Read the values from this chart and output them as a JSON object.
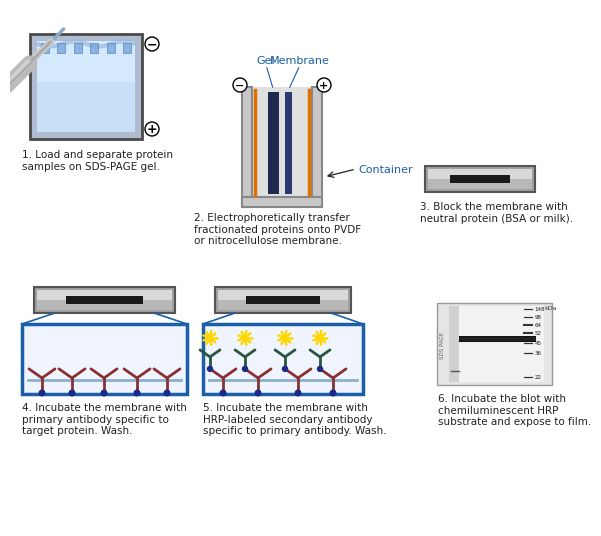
{
  "background_color": "#ffffff",
  "label_color": "#1a5fa8",
  "text_color": "#222222",
  "blue_border": "#1a5fa8",
  "steps": [
    {
      "text": "1. Load and separate protein\nsamples on SDS-PAGE gel."
    },
    {
      "text": "2. Electrophoretically transfer\nfractionated proteins onto PVDF\nor nitrocellulose membrane."
    },
    {
      "text": "3. Block the membrane with\nneutral protein (BSA or milk)."
    },
    {
      "text": "4. Incubate the membrane with\nprimary antibody specific to\ntarget protein. Wash."
    },
    {
      "text": "5. Incubate the membrane with\nHRP-labeled secondary antibody\nspecific to primary antibody. Wash."
    },
    {
      "text": "6. Incubate the blot with\nchemiluminescent HRP\nsubstrate and expose to film."
    }
  ],
  "gel_label": "Gel",
  "membrane_label": "Membrane",
  "container_label": "Container",
  "kda_labels": [
    "148",
    "98",
    "64",
    "52",
    "45",
    "36",
    "22"
  ],
  "kda_title": "kDa"
}
